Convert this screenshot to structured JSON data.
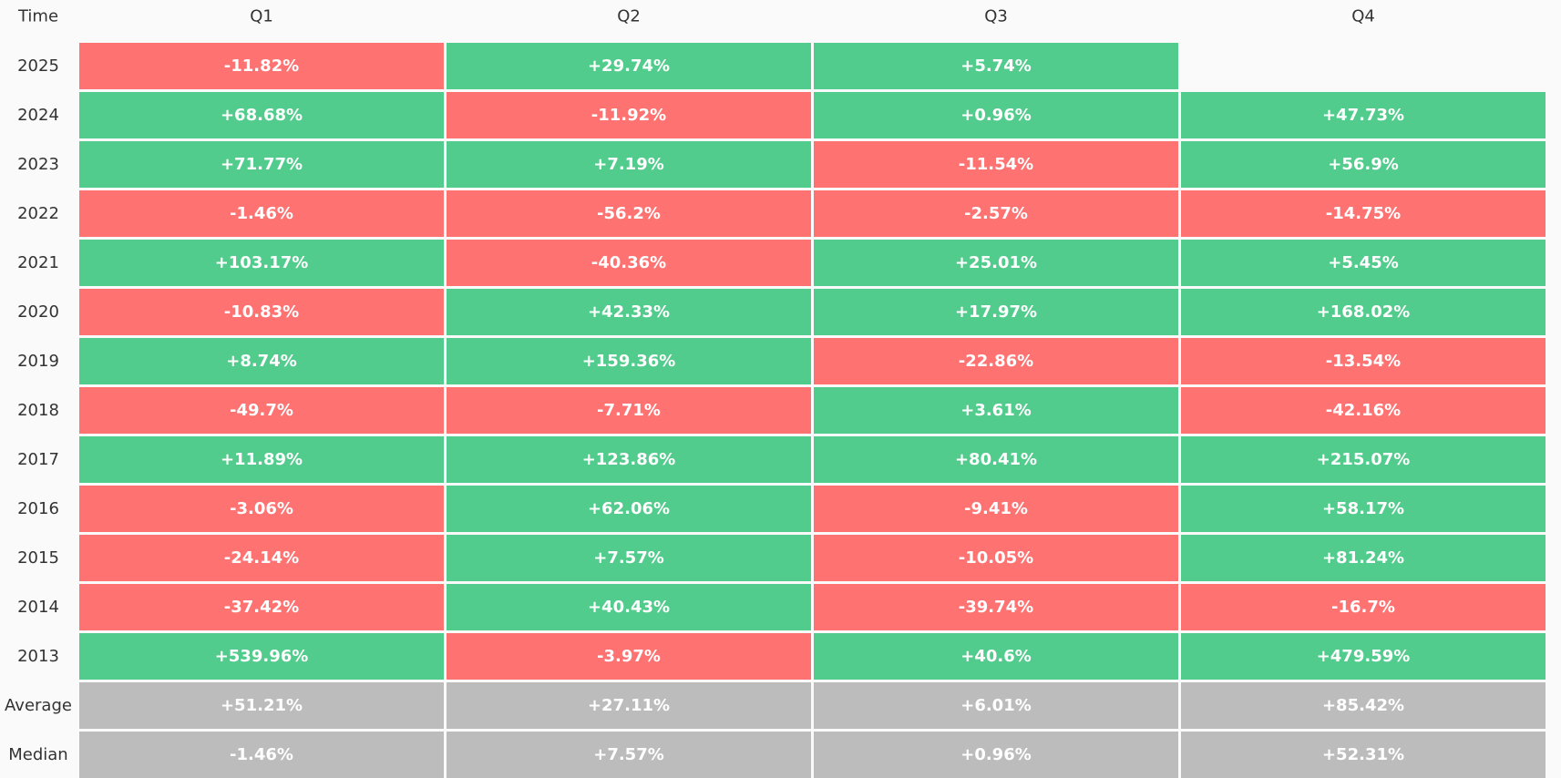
{
  "chart_data": {
    "type": "heatmap",
    "corner_label": "Time",
    "columns": [
      "Q1",
      "Q2",
      "Q3",
      "Q4"
    ],
    "rows": [
      {
        "label": "2025",
        "values": [
          "-11.82%",
          "+29.74%",
          "+5.74%",
          null
        ]
      },
      {
        "label": "2024",
        "values": [
          "+68.68%",
          "-11.92%",
          "+0.96%",
          "+47.73%"
        ]
      },
      {
        "label": "2023",
        "values": [
          "+71.77%",
          "+7.19%",
          "-11.54%",
          "+56.9%"
        ]
      },
      {
        "label": "2022",
        "values": [
          "-1.46%",
          "-56.2%",
          "-2.57%",
          "-14.75%"
        ]
      },
      {
        "label": "2021",
        "values": [
          "+103.17%",
          "-40.36%",
          "+25.01%",
          "+5.45%"
        ]
      },
      {
        "label": "2020",
        "values": [
          "-10.83%",
          "+42.33%",
          "+17.97%",
          "+168.02%"
        ]
      },
      {
        "label": "2019",
        "values": [
          "+8.74%",
          "+159.36%",
          "-22.86%",
          "-13.54%"
        ]
      },
      {
        "label": "2018",
        "values": [
          "-49.7%",
          "-7.71%",
          "+3.61%",
          "-42.16%"
        ]
      },
      {
        "label": "2017",
        "values": [
          "+11.89%",
          "+123.86%",
          "+80.41%",
          "+215.07%"
        ]
      },
      {
        "label": "2016",
        "values": [
          "-3.06%",
          "+62.06%",
          "-9.41%",
          "+58.17%"
        ]
      },
      {
        "label": "2015",
        "values": [
          "-24.14%",
          "+7.57%",
          "-10.05%",
          "+81.24%"
        ]
      },
      {
        "label": "2014",
        "values": [
          "-37.42%",
          "+40.43%",
          "-39.74%",
          "-16.7%"
        ]
      },
      {
        "label": "2013",
        "values": [
          "+539.96%",
          "-3.97%",
          "+40.6%",
          "+479.59%"
        ]
      }
    ],
    "summary_rows": [
      {
        "label": "Average",
        "values": [
          "+51.21%",
          "+27.11%",
          "+6.01%",
          "+85.42%"
        ]
      },
      {
        "label": "Median",
        "values": [
          "-1.46%",
          "+7.57%",
          "+0.96%",
          "+52.31%"
        ]
      }
    ],
    "colors": {
      "positive": "#52cc8c",
      "negative": "#ff7272",
      "summary": "#bcbcbc",
      "background": "#fafafa",
      "text": "#333333",
      "cell_text": "#ffffff"
    }
  }
}
